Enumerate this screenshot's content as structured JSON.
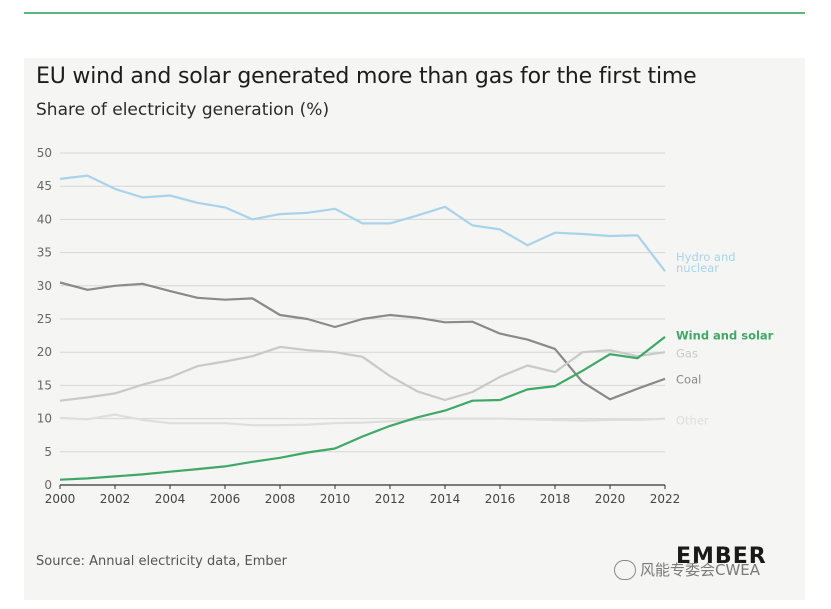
{
  "title": "EU wind and solar generated more than gas for the first time",
  "subtitle": "Share of electricity generation (%)",
  "source": "Source: Annual electricity data, Ember",
  "logo": "EMBER",
  "watermark": "风能专委会CWEA",
  "chart_data": {
    "type": "line",
    "x": [
      2000,
      2001,
      2002,
      2003,
      2004,
      2005,
      2006,
      2007,
      2008,
      2009,
      2010,
      2011,
      2012,
      2013,
      2014,
      2015,
      2016,
      2017,
      2018,
      2019,
      2020,
      2021,
      2022
    ],
    "ylim": [
      0,
      50
    ],
    "yticks": [
      "0",
      "5",
      "10",
      "15",
      "20",
      "25",
      "30",
      "35",
      "40",
      "45",
      "50"
    ],
    "xticks": [
      "2000",
      "2002",
      "2004",
      "2006",
      "2008",
      "2010",
      "2012",
      "2014",
      "2016",
      "2018",
      "2020",
      "2022"
    ],
    "grid": "horizontal",
    "series": [
      {
        "name": "Hydro and nuclear",
        "color": "#a8d3ea",
        "label_lines": [
          "Hydro and",
          "nuclear"
        ],
        "label_at": 33.5,
        "bold": false,
        "values": [
          46.1,
          46.6,
          44.6,
          43.3,
          43.6,
          42.5,
          41.8,
          40.0,
          40.8,
          41.0,
          41.6,
          39.4,
          39.4,
          40.6,
          41.9,
          39.1,
          38.5,
          36.1,
          38.0,
          37.8,
          37.5,
          37.6,
          32.2
        ]
      },
      {
        "name": "Coal",
        "color": "#8a8a8a",
        "label_lines": [
          "Coal"
        ],
        "label_at": 15.9,
        "bold": false,
        "values": [
          30.5,
          29.4,
          30.0,
          30.3,
          29.2,
          28.2,
          27.9,
          28.1,
          25.6,
          25.0,
          23.8,
          25.0,
          25.6,
          25.2,
          24.5,
          24.6,
          22.8,
          21.9,
          20.5,
          15.5,
          12.9,
          14.5,
          16.0
        ]
      },
      {
        "name": "Gas",
        "color": "#c9c9c9",
        "label_lines": [
          "Gas"
        ],
        "label_at": 19.8,
        "bold": false,
        "values": [
          12.7,
          13.2,
          13.8,
          15.1,
          16.2,
          17.9,
          18.6,
          19.4,
          20.8,
          20.3,
          20.0,
          19.3,
          16.4,
          14.1,
          12.8,
          14.0,
          16.3,
          18.0,
          17.0,
          20.0,
          20.3,
          19.4,
          20.0
        ]
      },
      {
        "name": "Other",
        "color": "#dedede",
        "label_lines": [
          "Other"
        ],
        "label_at": 9.7,
        "bold": false,
        "values": [
          10.1,
          9.9,
          10.6,
          9.8,
          9.3,
          9.3,
          9.3,
          9.0,
          9.0,
          9.1,
          9.3,
          9.4,
          9.6,
          9.8,
          10.0,
          10.0,
          10.0,
          9.9,
          9.8,
          9.7,
          9.8,
          9.8,
          10.0
        ]
      },
      {
        "name": "Wind and solar",
        "color": "#3fa866",
        "label_lines": [
          "Wind and solar"
        ],
        "label_at": 22.5,
        "bold": true,
        "values": [
          0.8,
          1.0,
          1.3,
          1.6,
          2.0,
          2.4,
          2.8,
          3.5,
          4.1,
          4.9,
          5.5,
          7.3,
          8.9,
          10.2,
          11.2,
          12.7,
          12.8,
          14.4,
          14.9,
          17.2,
          19.7,
          19.1,
          22.3
        ]
      }
    ]
  }
}
